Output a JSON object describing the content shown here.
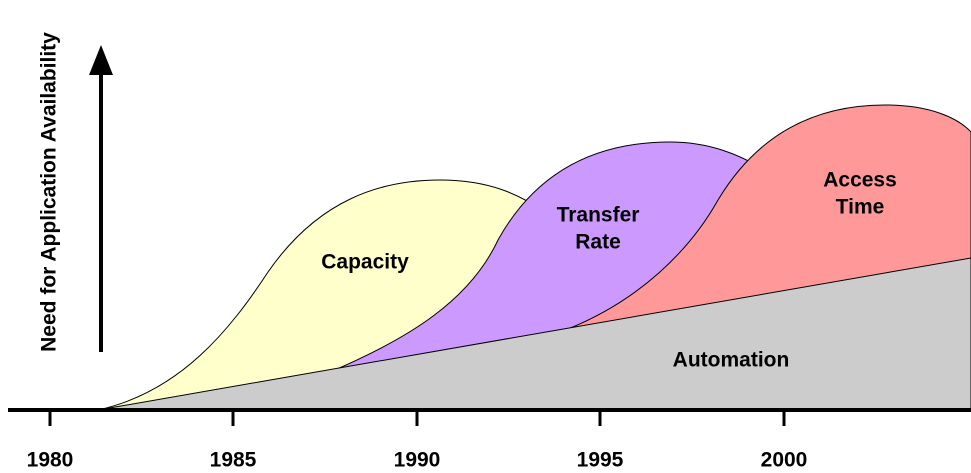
{
  "y_axis_label": "Need for Application Availability",
  "x_axis_labels": [
    "1980",
    "1985",
    "1990",
    "1995",
    "2000"
  ],
  "regions": [
    {
      "label": [
        "Capacity"
      ]
    },
    {
      "label": [
        "Transfer",
        "Rate"
      ]
    },
    {
      "label": [
        "Access",
        "Time"
      ]
    },
    {
      "label": [
        "Automation"
      ]
    }
  ]
}
